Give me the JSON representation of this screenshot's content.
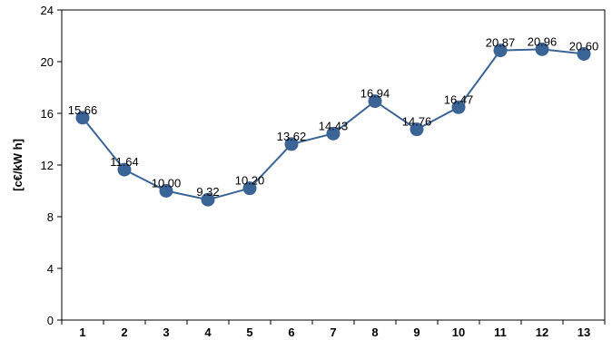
{
  "chart_data": {
    "type": "line",
    "ylabel": "[c€/kW h]",
    "xlabel": "",
    "x": [
      1,
      2,
      3,
      4,
      5,
      6,
      7,
      8,
      9,
      10,
      11,
      12,
      13
    ],
    "x_tick_labels": [
      "1",
      "2",
      "3",
      "4",
      "5",
      "6",
      "7",
      "8",
      "9",
      "10",
      "11",
      "12",
      "13"
    ],
    "series": [
      {
        "values": [
          15.66,
          11.64,
          10.0,
          9.32,
          10.2,
          13.62,
          14.43,
          16.94,
          14.76,
          16.47,
          20.87,
          20.96,
          20.6
        ],
        "data_labels": [
          "15.66",
          "11.64",
          "10.00",
          "9.32",
          "10.20",
          "13.62",
          "14.43",
          "16.94",
          "14.76",
          "16.47",
          "20.87",
          "20.96",
          "20.60"
        ],
        "color": "#3b6496",
        "marker_color": "#3b6496"
      }
    ],
    "ylim": [
      0,
      24
    ],
    "y_ticks": [
      0,
      4,
      8,
      12,
      16,
      20,
      24
    ],
    "y_tick_labels": [
      "0",
      "4",
      "8",
      "12",
      "16",
      "20",
      "24"
    ],
    "grid": false,
    "legend": "none"
  }
}
